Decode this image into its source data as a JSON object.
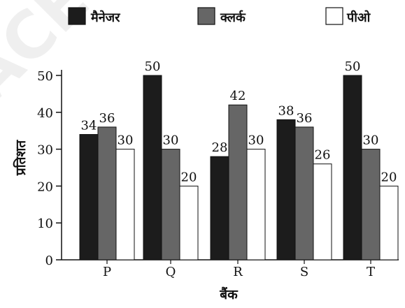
{
  "chart_data": {
    "type": "bar",
    "categories": [
      "P",
      "Q",
      "R",
      "S",
      "T"
    ],
    "series": [
      {
        "name": "मैनेजर",
        "values": [
          34,
          50,
          28,
          38,
          50
        ],
        "color": "#1c1c1c"
      },
      {
        "name": "क्लर्क",
        "values": [
          36,
          30,
          42,
          36,
          30
        ],
        "color": "#666666"
      },
      {
        "name": "पीओ",
        "values": [
          30,
          20,
          30,
          26,
          20
        ],
        "color": "#ffffff"
      }
    ],
    "xlabel": "बैंक",
    "ylabel": "प्रतिशत",
    "ylim": [
      0,
      50
    ],
    "yticks": [
      0,
      10,
      20,
      30,
      40,
      50
    ],
    "grid": false,
    "legend_position": "top"
  },
  "watermark_text": "ACE"
}
